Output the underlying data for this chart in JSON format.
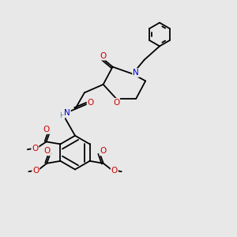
{
  "bg_color": "#e8e8e8",
  "atom_colors": {
    "N": "#0000cc",
    "O": "#cc0000",
    "H": "#5588aa"
  },
  "bond_color": "#000000",
  "bg_color2": "#dcdcdc"
}
